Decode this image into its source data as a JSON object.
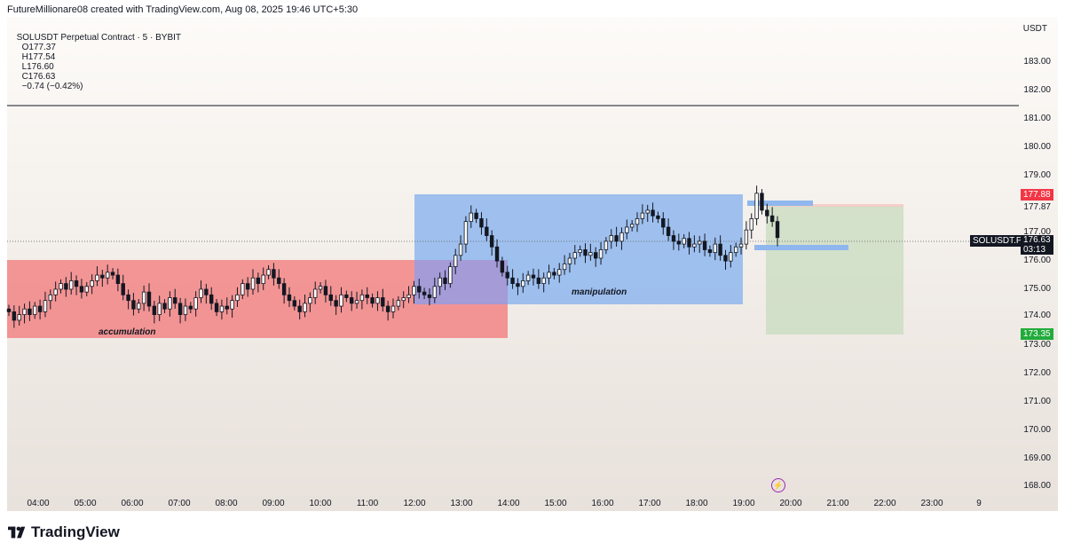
{
  "header": {
    "attribution": "FutureMillionare08 created with TradingView.com, Aug 08, 2025 19:46 UTC+5:30"
  },
  "legend": {
    "symbol": "SOLUSDT Perpetual Contract · 5 · BYBIT",
    "open": "O177.37",
    "high": "H177.54",
    "low": "L176.60",
    "close": "C176.63",
    "change": "−0.74 (−0.42%)"
  },
  "price_axis": {
    "currency": "USDT",
    "labels": [
      "183.00",
      "182.00",
      "181.00",
      "180.00",
      "179.00",
      "177.87",
      "177.00",
      "176.00",
      "175.00",
      "174.00",
      "173.00",
      "172.00",
      "171.00",
      "170.00",
      "169.00",
      "168.00"
    ]
  },
  "time_axis": {
    "labels": [
      "04:00",
      "05:00",
      "06:00",
      "07:00",
      "08:00",
      "09:00",
      "10:00",
      "11:00",
      "12:00",
      "13:00",
      "14:00",
      "15:00",
      "16:00",
      "17:00",
      "18:00",
      "19:00",
      "20:00",
      "21:00",
      "22:00",
      "23:00",
      "9"
    ]
  },
  "tags": {
    "stop": "177.88",
    "symbol": "SOLUSDT.P",
    "last": "176.63",
    "countdown": "03:13",
    "target": "173.35"
  },
  "zones": {
    "accumulation": "accumulation",
    "manipulation": "manipulation"
  },
  "colors": {
    "accumulation_zone": "#f28b8b",
    "manipulation_zone": "#9dc0f0",
    "target_zone": "#c8dbbf",
    "stop_tag": "#f23645",
    "target_tag": "#22ab3b",
    "last_tag": "#131722"
  },
  "brand": {
    "name": "TradingView"
  },
  "chart_data": {
    "type": "candlestick",
    "symbol": "SOLUSDT",
    "interval": "5",
    "exchange": "BYBIT",
    "ylim": [
      167.5,
      184.5
    ],
    "horizontal_line": 181.45,
    "closes": [
      174.0,
      173.7,
      173.9,
      174.1,
      173.9,
      174.2,
      174.0,
      174.4,
      174.6,
      174.8,
      175.0,
      174.8,
      175.1,
      174.9,
      174.7,
      174.9,
      175.1,
      175.3,
      175.2,
      175.4,
      175.3,
      175.0,
      174.6,
      174.4,
      174.1,
      174.3,
      174.7,
      174.2,
      173.9,
      174.3,
      174.1,
      174.5,
      174.3,
      173.9,
      174.2,
      174.1,
      174.5,
      174.8,
      174.6,
      174.3,
      174.0,
      174.2,
      174.1,
      174.4,
      174.6,
      175.0,
      174.8,
      175.2,
      175.0,
      175.3,
      175.5,
      175.2,
      175.0,
      174.6,
      174.4,
      174.2,
      174.0,
      174.3,
      174.5,
      174.8,
      174.9,
      174.6,
      174.4,
      174.2,
      174.6,
      174.5,
      174.3,
      174.4,
      174.6,
      174.5,
      174.3,
      174.5,
      174.2,
      174.0,
      174.2,
      174.4,
      174.5,
      174.6,
      174.9,
      174.7,
      174.6,
      174.5,
      174.9,
      175.2,
      175.0,
      175.6,
      176.0,
      176.4,
      177.2,
      177.5,
      177.3,
      177.0,
      176.7,
      176.3,
      175.8,
      175.4,
      175.2,
      175.0,
      174.9,
      175.1,
      175.3,
      175.2,
      175.0,
      175.2,
      175.4,
      175.3,
      175.5,
      175.7,
      175.9,
      176.1,
      176.2,
      176.0,
      176.1,
      175.9,
      176.2,
      176.5,
      176.7,
      176.5,
      176.8,
      177.0,
      177.1,
      177.3,
      177.5,
      177.6,
      177.4,
      177.3,
      177.0,
      176.7,
      176.5,
      176.4,
      176.6,
      176.3,
      176.4,
      176.5,
      176.2,
      176.1,
      176.4,
      176.0,
      175.8,
      176.1,
      176.3,
      176.4,
      176.9,
      177.3,
      178.2,
      177.6,
      177.4,
      177.2,
      176.63
    ]
  }
}
